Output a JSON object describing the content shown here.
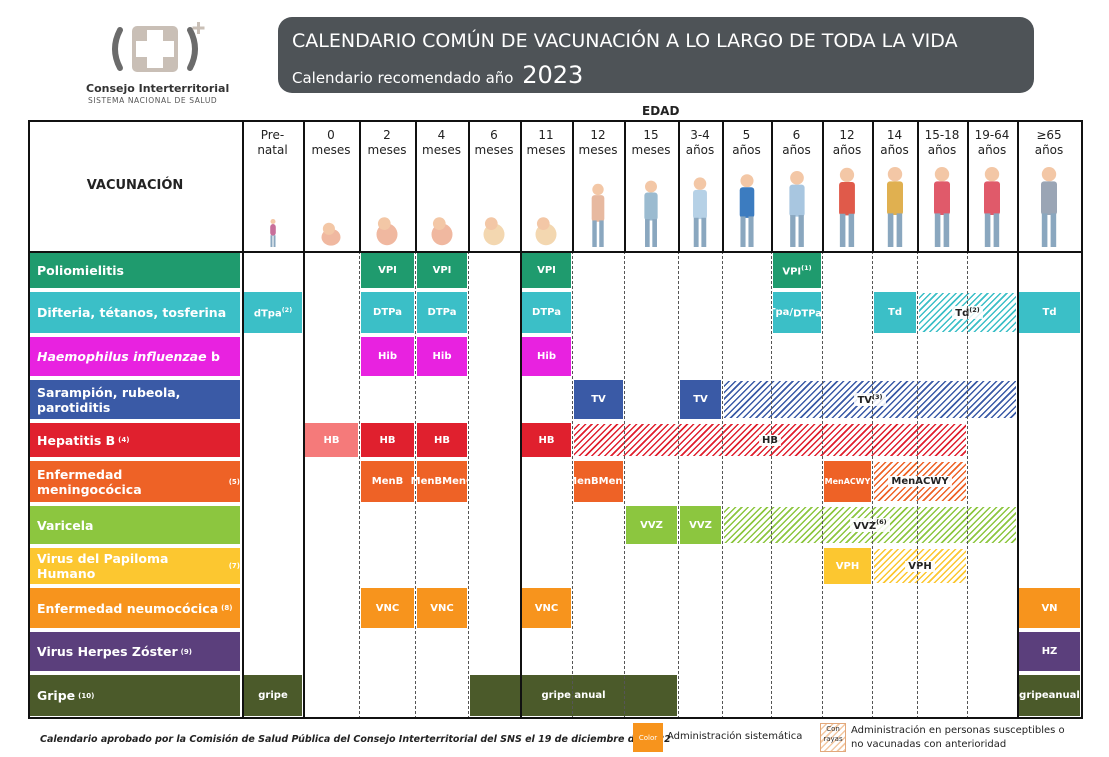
{
  "header": {
    "org_name": "Consejo Interterritorial",
    "org_sub": "SISTEMA NACIONAL DE SALUD",
    "title": "CALENDARIO COMÚN DE VACUNACIÓN A LO LARGO DE TODA LA VIDA",
    "subtitle": "Calendario recomendado año",
    "year": "2023"
  },
  "edad_label": "EDAD",
  "vacunacion_label": "VACUNACIÓN",
  "age_columns": [
    {
      "top": "Pre-",
      "bottom": "natal"
    },
    {
      "top": "0",
      "bottom": "meses"
    },
    {
      "top": "2",
      "bottom": "meses"
    },
    {
      "top": "4",
      "bottom": "meses"
    },
    {
      "top": "6",
      "bottom": "meses"
    },
    {
      "top": "11",
      "bottom": "meses"
    },
    {
      "top": "12",
      "bottom": "meses"
    },
    {
      "top": "15",
      "bottom": "meses"
    },
    {
      "top": "3-4",
      "bottom": "años"
    },
    {
      "top": "5",
      "bottom": "años"
    },
    {
      "top": "6",
      "bottom": "años"
    },
    {
      "top": "12",
      "bottom": "años"
    },
    {
      "top": "14",
      "bottom": "años"
    },
    {
      "top": "15-18",
      "bottom": "años"
    },
    {
      "top": "19-64",
      "bottom": "años"
    },
    {
      "top": "≥65",
      "bottom": "años"
    }
  ],
  "vaccines": [
    {
      "name": "Poliomielitis",
      "note": "",
      "italic": false,
      "color": "#1f9b6e",
      "cells": [
        {
          "col": 2,
          "label": "VPI"
        },
        {
          "col": 3,
          "label": "VPI"
        },
        {
          "col": 5,
          "label": "VPI"
        },
        {
          "col": 10,
          "label": "VPI",
          "note": "(1)"
        }
      ],
      "hatched": []
    },
    {
      "name": "Difteria, tétanos, tosferina",
      "note": "",
      "italic": false,
      "color": "#3bbfc7",
      "cells": [
        {
          "col": 0,
          "label": "dTpa",
          "note": "(2)"
        },
        {
          "col": 2,
          "label": "DTPa"
        },
        {
          "col": 3,
          "label": "DTPa"
        },
        {
          "col": 5,
          "label": "DTPa"
        },
        {
          "col": 10,
          "label": "dTpa/",
          "label2": "DTPa",
          "note": "(2)"
        },
        {
          "col": 12,
          "label": "Td"
        },
        {
          "col": 15,
          "label": "Td"
        }
      ],
      "hatched": [
        {
          "from": 13,
          "to": 14,
          "label": "Td",
          "note": "(2)"
        }
      ]
    },
    {
      "name": "Haemophilus influenzae",
      "suffix": " b",
      "note": "",
      "italic": true,
      "color": "#e822e0",
      "cells": [
        {
          "col": 2,
          "label": "Hib"
        },
        {
          "col": 3,
          "label": "Hib"
        },
        {
          "col": 5,
          "label": "Hib"
        }
      ],
      "hatched": []
    },
    {
      "name": "Sarampión, rubeola, parotiditis",
      "note": "",
      "italic": false,
      "color": "#3a5aa6",
      "cells": [
        {
          "col": 6,
          "label": "TV"
        },
        {
          "col": 8,
          "label": "TV"
        }
      ],
      "hatched": [
        {
          "from": 9,
          "to": 14,
          "label": "TV",
          "note": "(3)"
        }
      ]
    },
    {
      "name": "Hepatitis B",
      "note": "(4)",
      "italic": false,
      "color": "#e0202e",
      "cells": [
        {
          "col": 1,
          "label": "HB",
          "color": "#f57a7a"
        },
        {
          "col": 2,
          "label": "HB"
        },
        {
          "col": 3,
          "label": "HB"
        },
        {
          "col": 5,
          "label": "HB"
        }
      ],
      "hatched": [
        {
          "from": 6,
          "to": 13,
          "label": "HB",
          "note": ""
        }
      ]
    },
    {
      "name": "Enfermedad meningocócica",
      "note": "(5)",
      "italic": false,
      "color": "#ee6226",
      "cells": [
        {
          "col": 2,
          "label": "MenB"
        },
        {
          "col": 3,
          "label": "MenB",
          "label2": "MenC"
        },
        {
          "col": 6,
          "label": "MenB",
          "label2": "MenC"
        },
        {
          "col": 11,
          "label": "MenACWY",
          "small": true
        }
      ],
      "hatched": [
        {
          "from": 12,
          "to": 13,
          "label": "MenACWY",
          "note": ""
        }
      ]
    },
    {
      "name": "Varicela",
      "note": "",
      "italic": false,
      "color": "#8cc63f",
      "cells": [
        {
          "col": 7,
          "label": "VVZ"
        },
        {
          "col": 8,
          "label": "VVZ"
        }
      ],
      "hatched": [
        {
          "from": 9,
          "to": 14,
          "label": "VVZ",
          "note": "(6)"
        }
      ]
    },
    {
      "name": "Virus del Papiloma Humano",
      "note": "(7)",
      "italic": false,
      "color": "#fcc730",
      "cells": [
        {
          "col": 11,
          "label": "VPH"
        }
      ],
      "hatched": [
        {
          "from": 12,
          "to": 13,
          "label": "VPH",
          "note": ""
        }
      ]
    },
    {
      "name": "Enfermedad neumocócica",
      "note": "(8)",
      "italic": false,
      "color": "#f7941d",
      "cells": [
        {
          "col": 2,
          "label": "VNC"
        },
        {
          "col": 3,
          "label": "VNC"
        },
        {
          "col": 5,
          "label": "VNC"
        },
        {
          "col": 15,
          "label": "VN"
        }
      ],
      "hatched": []
    },
    {
      "name": "Virus Herpes Zóster",
      "note": "(9)",
      "italic": false,
      "color": "#5b3f7c",
      "cells": [
        {
          "col": 15,
          "label": "HZ"
        }
      ],
      "hatched": []
    },
    {
      "name": "Gripe",
      "note": "(10)",
      "italic": false,
      "color": "#4b5a2a",
      "cells": [
        {
          "col": 0,
          "label": "gripe"
        },
        {
          "col": 4,
          "span": 4,
          "label": "gripe anual"
        },
        {
          "col": 15,
          "label": "gripe",
          "label2": "anual"
        }
      ],
      "hatched": []
    }
  ],
  "footer": {
    "approval": "Calendario aprobado por la Comisión de Salud Pública del Consejo Interterritorial del SNS el 19 de diciembre de 2022",
    "legend_color_box": "Color",
    "legend_color_text": "Administración sistemática",
    "legend_hatch_box": "Con rayas",
    "legend_hatch_text_1": "Administración en personas susceptibles o",
    "legend_hatch_text_2": "no vacunadas con anterioridad"
  }
}
